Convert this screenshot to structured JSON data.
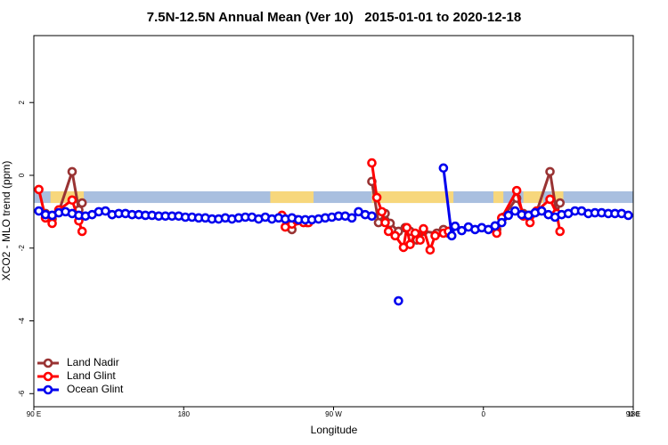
{
  "chart_data": {
    "type": "line",
    "title": "7.5N-12.5N Annual Mean (Ver 10)   2015-01-01 to 2020-12-18",
    "x_label": "Longitude",
    "y_label": "XCO2 - MLO trend (ppm)",
    "xlim": [
      90,
      450
    ],
    "xticks": [
      {
        "value": 90,
        "label": "90 E"
      },
      {
        "value": 180,
        "label": "180"
      },
      {
        "value": 270,
        "label": "90 W"
      },
      {
        "value": 360,
        "label": "0"
      },
      {
        "value": 450,
        "label": "90 E"
      },
      {
        "value": 540,
        "label": "180"
      }
    ],
    "ylim": [
      -6.36,
      3.84
    ],
    "yticks": [
      -6,
      -4,
      -2,
      0,
      2
    ],
    "band": [
      -0.76,
      -0.44
    ],
    "band_color": "#a9bfdf",
    "land_color": "#f7d77c",
    "land_spans": [
      [
        100,
        120
      ],
      [
        232,
        258
      ],
      [
        293,
        342
      ],
      [
        366,
        372
      ],
      [
        384,
        396
      ],
      [
        401,
        408
      ]
    ],
    "legend": "bottom-left",
    "series": [
      {
        "name": "Land Nadir",
        "color": "#993333",
        "x": [
          97,
          101,
          105,
          113,
          117,
          119,
          null,
          239,
          245,
          248,
          254,
          null,
          293,
          297,
          301,
          304,
          309,
          313,
          316,
          320,
          324,
          332,
          336,
          339,
          null,
          368,
          372,
          380,
          384,
          388,
          392,
          400,
          404,
          406
        ],
        "values": [
          -1.05,
          -1.2,
          -1.0,
          0.1,
          -0.95,
          -0.76,
          null,
          -1.15,
          -1.49,
          -1.22,
          -1.3,
          null,
          -0.17,
          -1.3,
          -1.05,
          -1.32,
          -1.54,
          -1.44,
          -1.54,
          -1.78,
          -1.54,
          -1.59,
          -1.49,
          -1.59,
          null,
          -1.49,
          -1.15,
          -0.63,
          -1.05,
          -1.1,
          -1.0,
          0.1,
          -1.05,
          -0.76
        ]
      },
      {
        "name": "Land Glint",
        "color": "#ff0000",
        "x": [
          93,
          97,
          101,
          105,
          113,
          117,
          119,
          null,
          239,
          241,
          245,
          248,
          252,
          255,
          null,
          293,
          296,
          299,
          301,
          303,
          307,
          312,
          314,
          316,
          319,
          322,
          324,
          328,
          331,
          336,
          339,
          null,
          368,
          371,
          380,
          384,
          388,
          392,
          400,
          404,
          406
        ],
        "values": [
          -0.39,
          -1.17,
          -1.32,
          -0.95,
          -0.68,
          -1.25,
          -1.54,
          null,
          -1.1,
          -1.42,
          -1.34,
          -1.25,
          -1.3,
          -1.3,
          null,
          0.34,
          -0.61,
          -1.0,
          -1.3,
          -1.54,
          -1.66,
          -1.98,
          -1.44,
          -1.9,
          -1.59,
          -1.78,
          -1.47,
          -2.05,
          -1.66,
          -1.59,
          -1.54,
          null,
          -1.59,
          -1.17,
          -0.42,
          -1.12,
          -1.3,
          -0.98,
          -0.66,
          -1.05,
          -1.54
        ]
      },
      {
        "name": "Ocean Glint",
        "color": "#0000ee",
        "x": [
          93,
          97,
          101,
          105,
          109,
          113,
          117,
          121,
          125,
          129,
          133,
          137,
          141,
          145,
          149,
          153,
          157,
          161,
          165,
          169,
          173,
          177,
          181,
          185,
          189,
          193,
          197,
          201,
          205,
          209,
          213,
          217,
          221,
          225,
          229,
          233,
          237,
          241,
          245,
          249,
          253,
          257,
          261,
          265,
          269,
          273,
          277,
          281,
          285,
          289,
          293,
          null,
          309,
          null,
          336,
          341,
          343,
          347,
          351,
          355,
          359,
          363,
          367,
          371,
          375,
          379,
          383,
          387,
          391,
          395,
          399,
          403,
          407,
          411,
          415,
          419,
          423,
          427,
          431,
          435,
          439,
          443,
          447
        ],
        "values": [
          -0.98,
          -1.08,
          -1.1,
          -1.03,
          -1.0,
          -1.05,
          -1.1,
          -1.12,
          -1.08,
          -1.0,
          -0.98,
          -1.08,
          -1.05,
          -1.05,
          -1.08,
          -1.08,
          -1.1,
          -1.1,
          -1.12,
          -1.12,
          -1.12,
          -1.12,
          -1.15,
          -1.15,
          -1.17,
          -1.17,
          -1.2,
          -1.2,
          -1.17,
          -1.2,
          -1.17,
          -1.15,
          -1.15,
          -1.2,
          -1.15,
          -1.2,
          -1.17,
          -1.2,
          -1.17,
          -1.22,
          -1.22,
          -1.22,
          -1.2,
          -1.17,
          -1.15,
          -1.12,
          -1.12,
          -1.17,
          -1.0,
          -1.08,
          -1.12,
          null,
          -3.45,
          null,
          0.2,
          -1.66,
          -1.4,
          -1.52,
          -1.42,
          -1.49,
          -1.44,
          -1.49,
          -1.39,
          -1.3,
          -1.1,
          -0.98,
          -1.08,
          -1.1,
          -1.03,
          -0.98,
          -1.08,
          -1.15,
          -1.08,
          -1.05,
          -0.98,
          -0.98,
          -1.05,
          -1.03,
          -1.03,
          -1.05,
          -1.05,
          -1.05,
          -1.1
        ]
      }
    ]
  }
}
